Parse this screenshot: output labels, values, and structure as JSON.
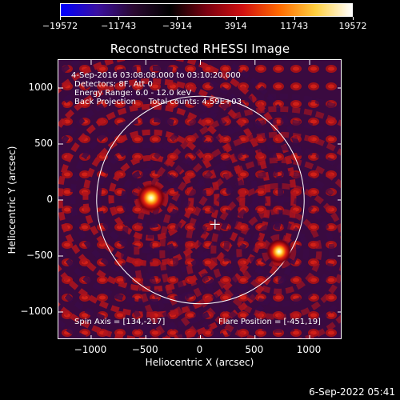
{
  "colorbar": {
    "tick_labels": [
      "−19572",
      "−11743",
      "−3914",
      "3914",
      "11743",
      "19572"
    ],
    "colors": [
      "#0000ff",
      "#3a10a0",
      "#2a0830",
      "#000000",
      "#7a0010",
      "#d01010",
      "#ff6a00",
      "#ffd040",
      "#ffffff"
    ]
  },
  "title": "Reconstructed RHESSI Image",
  "annotations": {
    "time_range": "4-Sep-2016 03:08:08.000 to 03:10:20.000",
    "detectors": "Detectors: 8F, Att 0",
    "energy_range": "Energy Range: 6.0 - 12.0 keV",
    "method_counts": "Back Projection     Total counts: 4.59E+03",
    "spin_axis": "Spin Axis = [134,-217]",
    "flare_position": "Flare Position = [-451,19]"
  },
  "axes": {
    "xlabel": "Heliocentric X (arcsec)",
    "ylabel": "Heliocentric Y (arcsec)",
    "xticks": [
      "−1000",
      "−500",
      "0",
      "500",
      "1000"
    ],
    "yticks": [
      "1000",
      "500",
      "0",
      "−500",
      "−1000"
    ],
    "xticks_values": [
      -1000,
      -500,
      0,
      500,
      1000
    ],
    "yticks_values": [
      1000,
      500,
      0,
      -500,
      -1000
    ],
    "xlim": [
      -1300,
      1300
    ],
    "ylim": [
      -1250,
      1250
    ]
  },
  "image": {
    "solar_radius_arcsec": 950,
    "sources": [
      {
        "x": -451,
        "y": 19,
        "label": "flare"
      },
      {
        "x": 720,
        "y": -460,
        "label": "secondary"
      }
    ],
    "spin_axis": [
      134,
      -217
    ]
  },
  "footer": {
    "date": "6-Sep-2022 05:41"
  }
}
